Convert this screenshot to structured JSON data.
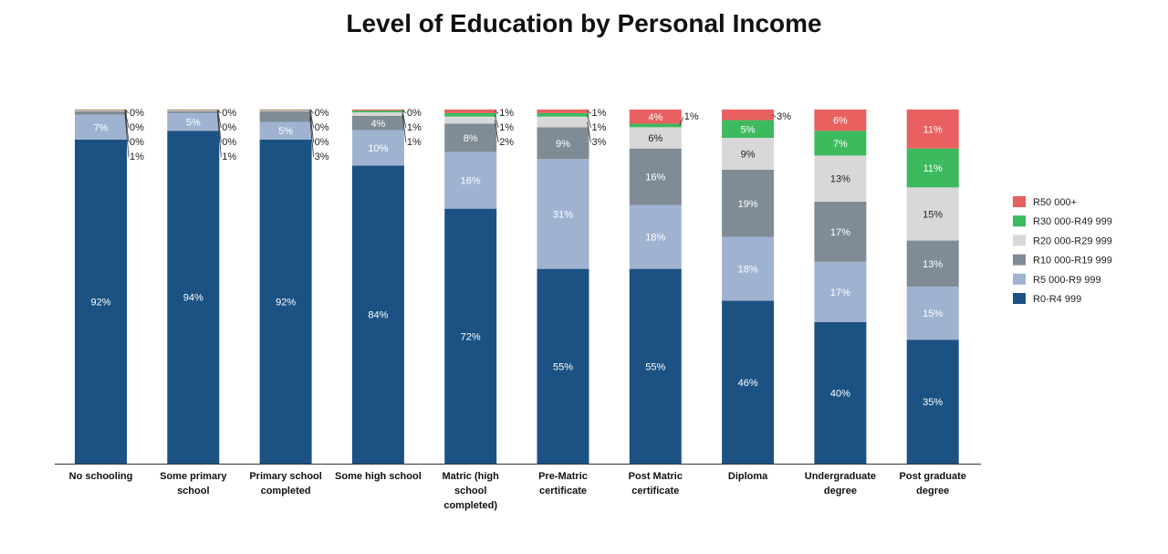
{
  "chart_data": {
    "type": "bar",
    "stacked": true,
    "title": "Level of Education by Personal Income",
    "xlabel": "",
    "ylabel": "",
    "ylim": [
      0,
      100
    ],
    "grid": false,
    "legend_position": "right",
    "categories": [
      [
        "No schooling"
      ],
      [
        "Some primary",
        "school"
      ],
      [
        "Primary school",
        "completed"
      ],
      [
        "Some high school"
      ],
      [
        "Matric (high",
        "school",
        "completed)"
      ],
      [
        "Pre-Matric",
        "certificate"
      ],
      [
        "Post Matric",
        "certificate"
      ],
      [
        "Diploma"
      ],
      [
        "Undergraduate",
        "degree"
      ],
      [
        "Post graduate",
        "degree"
      ]
    ],
    "series": [
      {
        "name": "R0-R4 999",
        "color": "#1b5283",
        "values": [
          92,
          94,
          92,
          84,
          72,
          55,
          55,
          46,
          40,
          35
        ]
      },
      {
        "name": "R5 000-R9 999",
        "color": "#9fb3d1",
        "values": [
          7,
          5,
          5,
          10,
          16,
          31,
          18,
          18,
          17,
          15
        ]
      },
      {
        "name": "R10 000-R19 999",
        "color": "#7f8c96",
        "values": [
          1,
          0.5,
          3,
          4,
          8,
          9,
          16,
          19,
          17,
          13
        ]
      },
      {
        "name": "R20 000-R29 999",
        "color": "#d8d8d8",
        "values": [
          0.3,
          0.3,
          0.3,
          1,
          2,
          3,
          6,
          9,
          13,
          15
        ]
      },
      {
        "name": "R30 000-R49 999",
        "color": "#3dba5e",
        "values": [
          0.1,
          0.1,
          0.1,
          0.5,
          1,
          1,
          1,
          5,
          7,
          11
        ]
      },
      {
        "name": "R50 000+",
        "color": "#e86060",
        "values": [
          0.1,
          0.1,
          0.1,
          0.3,
          1,
          1,
          4,
          3,
          6,
          11
        ]
      }
    ],
    "labels": [
      [
        "92%",
        "7%",
        "1%",
        "0%",
        "0%",
        "0%"
      ],
      [
        "94%",
        "5%",
        "1%",
        "0%",
        "0%",
        "0%"
      ],
      [
        "92%",
        "5%",
        "3%",
        "0%",
        "0%",
        "0%"
      ],
      [
        "84%",
        "10%",
        "4%",
        "1%",
        "1%",
        "0%"
      ],
      [
        "72%",
        "16%",
        "8%",
        "2%",
        "1%",
        "1%"
      ],
      [
        "55%",
        "31%",
        "9%",
        "3%",
        "1%",
        "1%"
      ],
      [
        "55%",
        "18%",
        "16%",
        "6%",
        "1%",
        "4%"
      ],
      [
        "46%",
        "18%",
        "19%",
        "9%",
        "5%",
        "3%"
      ],
      [
        "40%",
        "17%",
        "17%",
        "13%",
        "7%",
        "6%"
      ],
      [
        "35%",
        "15%",
        "13%",
        "15%",
        "11%",
        "11%"
      ]
    ]
  }
}
